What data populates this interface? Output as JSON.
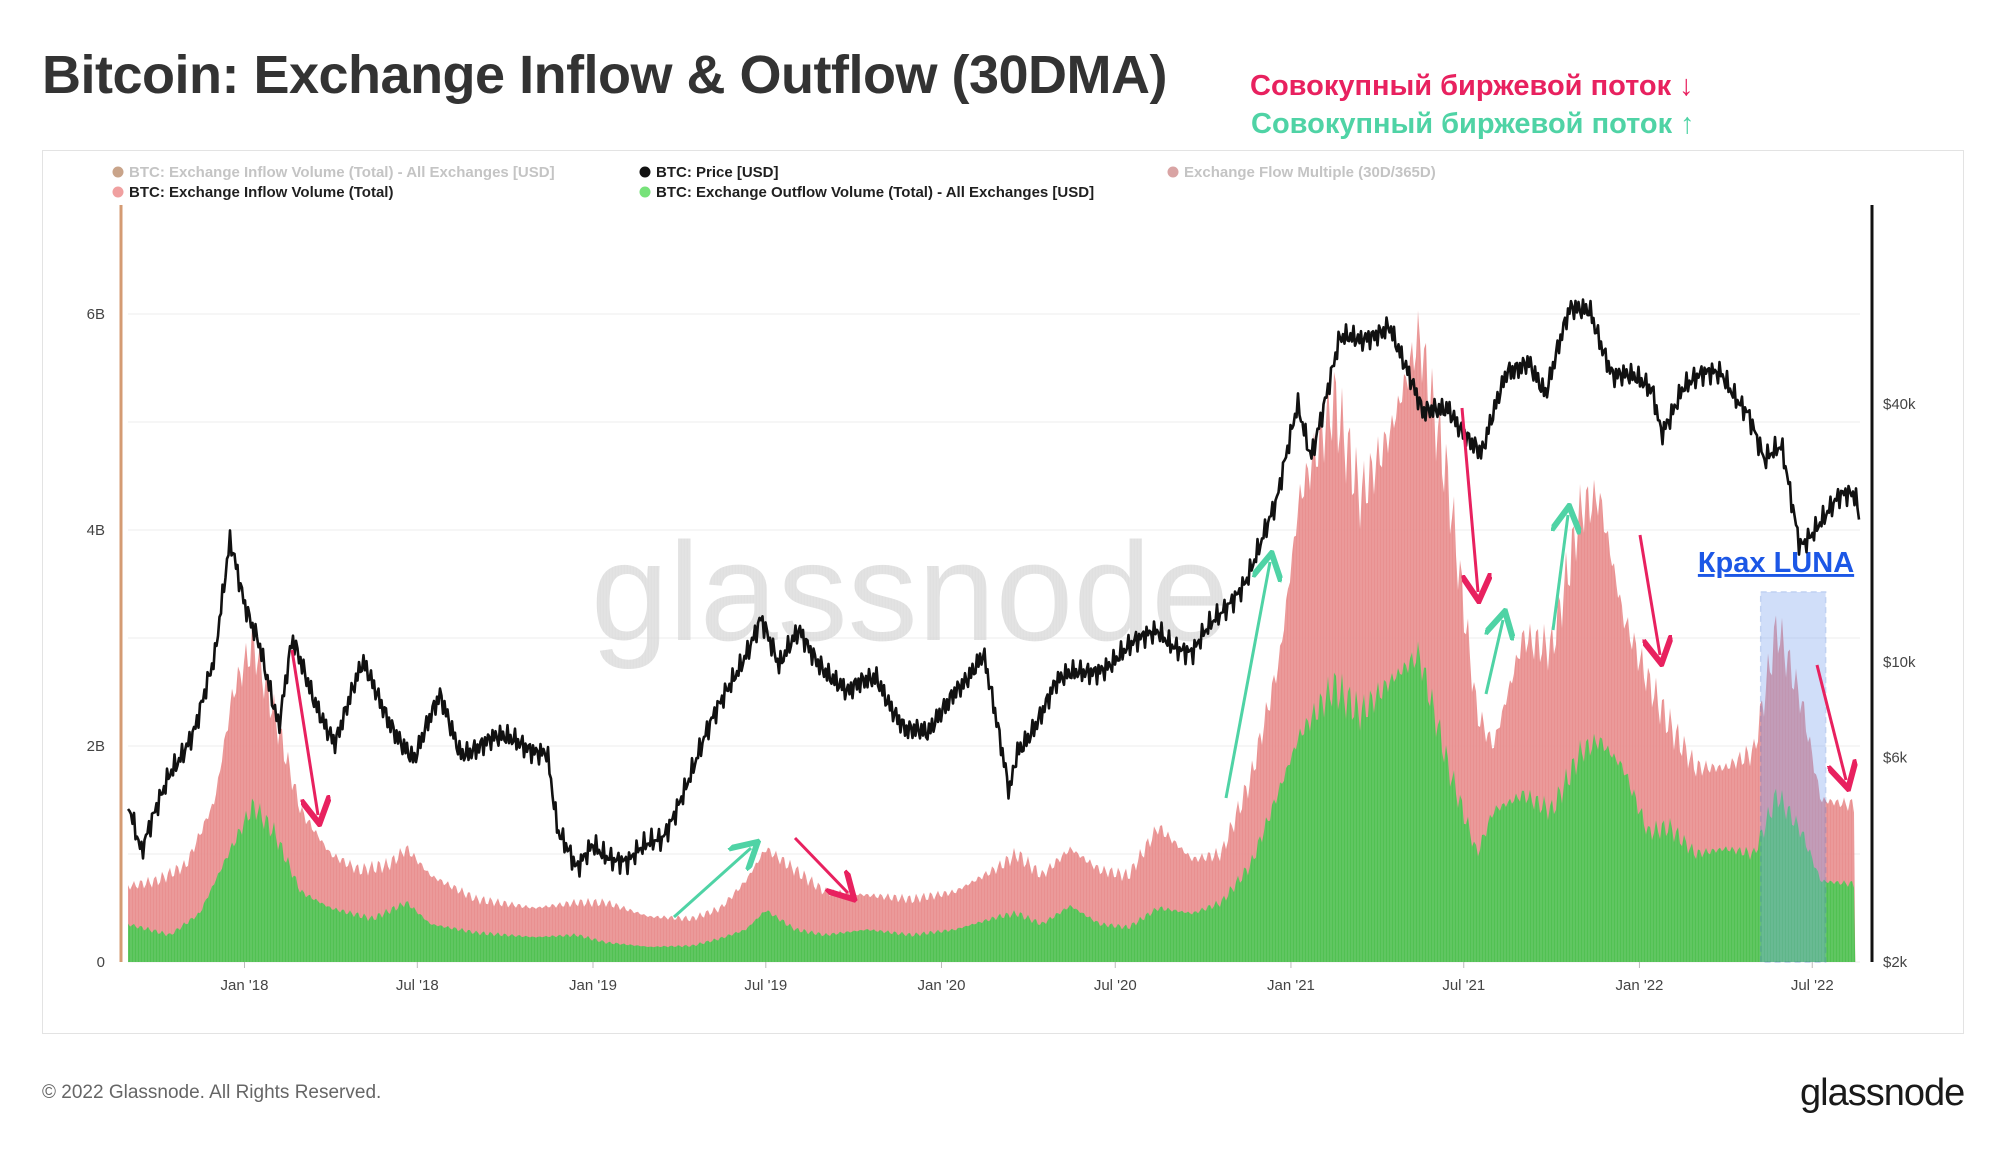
{
  "title": "Bitcoin: Exchange Inflow & Outflow (30DMA)",
  "annotations": {
    "outflow_label": "Совокупный биржевой поток ↓",
    "inflow_label": "Совокупный биржевой поток ↑",
    "luna_label": "Крах LUNA"
  },
  "footer": "© 2022 Glassnode. All Rights Reserved.",
  "brand": "glassnode",
  "watermark": "glassnode",
  "colors": {
    "inflow": "#e88a8a",
    "outflow": "#49c44f",
    "price": "#111111",
    "down_arrow": "#e8215f",
    "up_arrow": "#4fd3a5",
    "luna_box": "#7aa3f0",
    "luna_text": "#1c57e6",
    "left_axis": "#d49b73",
    "right_axis": "#111111"
  },
  "legend": [
    {
      "label": "BTC: Exchange Inflow Volume (Total) - All Exchanges [USD]",
      "color": "#c9a48a",
      "muted": true
    },
    {
      "label": "BTC: Price [USD]",
      "color": "#111111",
      "muted": false
    },
    {
      "label": "Exchange Flow Multiple (30D/365D)",
      "color": "#d9a4a4",
      "muted": true
    },
    {
      "label": "BTC: Exchange Inflow Volume (Total)",
      "color": "#f0a0a0",
      "muted": false
    },
    {
      "label": "BTC: Exchange Outflow Volume (Total) - All Exchanges [USD]",
      "color": "#77e27a",
      "muted": false
    }
  ],
  "chart_data": {
    "type": "area",
    "x_ticks": [
      "Jan '18",
      "Jul '18",
      "Jan '19",
      "Jul '19",
      "Jan '20",
      "Jul '20",
      "Jan '21",
      "Jul '21",
      "Jan '22",
      "Jul '22"
    ],
    "y_left_ticks": [
      "0",
      "2B",
      "4B",
      "6B"
    ],
    "y_left_range": [
      0,
      7000000000
    ],
    "y_right_ticks": [
      "$2k",
      "$6k",
      "$10k",
      "$40k"
    ],
    "y_right_scale": "log",
    "y_right_range": [
      2000,
      100000
    ],
    "grid": true,
    "legend_position": "top-left",
    "series": [
      {
        "name": "BTC: Exchange Inflow Volume (Total)",
        "unit": "USD",
        "points": [
          [
            "2017-09-01",
            0.7
          ],
          [
            "2017-10-01",
            0.75
          ],
          [
            "2017-11-01",
            0.9
          ],
          [
            "2017-12-01",
            1.5
          ],
          [
            "2017-12-20",
            2.5
          ],
          [
            "2018-01-10",
            2.95
          ],
          [
            "2018-02-01",
            2.3
          ],
          [
            "2018-03-01",
            1.4
          ],
          [
            "2018-04-01",
            1.0
          ],
          [
            "2018-05-01",
            0.85
          ],
          [
            "2018-06-01",
            0.9
          ],
          [
            "2018-06-20",
            1.05
          ],
          [
            "2018-07-15",
            0.8
          ],
          [
            "2018-09-01",
            0.58
          ],
          [
            "2018-11-01",
            0.5
          ],
          [
            "2018-12-15",
            0.55
          ],
          [
            "2019-01-15",
            0.55
          ],
          [
            "2019-03-01",
            0.42
          ],
          [
            "2019-04-15",
            0.4
          ],
          [
            "2019-05-15",
            0.5
          ],
          [
            "2019-06-10",
            0.75
          ],
          [
            "2019-07-01",
            1.05
          ],
          [
            "2019-08-01",
            0.85
          ],
          [
            "2019-09-01",
            0.65
          ],
          [
            "2019-10-15",
            0.62
          ],
          [
            "2019-12-01",
            0.58
          ],
          [
            "2020-01-15",
            0.65
          ],
          [
            "2020-03-01",
            0.88
          ],
          [
            "2020-03-20",
            1.0
          ],
          [
            "2020-04-15",
            0.8
          ],
          [
            "2020-05-15",
            1.05
          ],
          [
            "2020-06-15",
            0.85
          ],
          [
            "2020-07-15",
            0.8
          ],
          [
            "2020-08-15",
            1.25
          ],
          [
            "2020-09-20",
            0.95
          ],
          [
            "2020-10-20",
            1.0
          ],
          [
            "2020-11-20",
            1.7
          ],
          [
            "2020-12-20",
            2.8
          ],
          [
            "2021-01-10",
            4.3
          ],
          [
            "2021-02-15",
            5.2
          ],
          [
            "2021-03-15",
            4.3
          ],
          [
            "2021-04-15",
            4.9
          ],
          [
            "2021-05-15",
            5.8
          ],
          [
            "2021-06-15",
            4.4
          ],
          [
            "2021-07-15",
            2.3
          ],
          [
            "2021-08-01",
            2.0
          ],
          [
            "2021-09-01",
            3.0
          ],
          [
            "2021-10-01",
            2.9
          ],
          [
            "2021-11-01",
            4.2
          ],
          [
            "2021-11-20",
            4.3
          ],
          [
            "2021-12-15",
            3.2
          ],
          [
            "2022-01-10",
            2.6
          ],
          [
            "2022-02-01",
            2.2
          ],
          [
            "2022-03-01",
            1.8
          ],
          [
            "2022-04-01",
            1.8
          ],
          [
            "2022-05-01",
            1.95
          ],
          [
            "2022-05-25",
            3.1
          ],
          [
            "2022-06-20",
            2.4
          ],
          [
            "2022-07-10",
            1.5
          ],
          [
            "2022-08-15",
            1.45
          ]
        ]
      },
      {
        "name": "BTC: Exchange Outflow Volume (Total) - All Exchanges [USD]",
        "unit": "USD",
        "points": [
          [
            "2017-09-01",
            0.35
          ],
          [
            "2017-10-15",
            0.25
          ],
          [
            "2017-11-15",
            0.45
          ],
          [
            "2017-12-15",
            1.0
          ],
          [
            "2018-01-10",
            1.45
          ],
          [
            "2018-02-01",
            1.2
          ],
          [
            "2018-03-01",
            0.65
          ],
          [
            "2018-04-01",
            0.5
          ],
          [
            "2018-05-15",
            0.4
          ],
          [
            "2018-06-20",
            0.55
          ],
          [
            "2018-07-15",
            0.35
          ],
          [
            "2018-09-01",
            0.27
          ],
          [
            "2018-11-01",
            0.23
          ],
          [
            "2018-12-15",
            0.25
          ],
          [
            "2019-01-15",
            0.18
          ],
          [
            "2019-03-01",
            0.14
          ],
          [
            "2019-04-15",
            0.15
          ],
          [
            "2019-05-15",
            0.22
          ],
          [
            "2019-06-10",
            0.3
          ],
          [
            "2019-07-01",
            0.48
          ],
          [
            "2019-08-01",
            0.3
          ],
          [
            "2019-09-01",
            0.25
          ],
          [
            "2019-10-15",
            0.3
          ],
          [
            "2019-12-01",
            0.25
          ],
          [
            "2020-01-15",
            0.3
          ],
          [
            "2020-03-01",
            0.42
          ],
          [
            "2020-03-20",
            0.45
          ],
          [
            "2020-04-15",
            0.35
          ],
          [
            "2020-05-15",
            0.52
          ],
          [
            "2020-06-15",
            0.35
          ],
          [
            "2020-07-15",
            0.32
          ],
          [
            "2020-08-15",
            0.5
          ],
          [
            "2020-09-20",
            0.45
          ],
          [
            "2020-10-20",
            0.55
          ],
          [
            "2020-11-20",
            0.9
          ],
          [
            "2020-12-20",
            1.6
          ],
          [
            "2021-01-10",
            2.1
          ],
          [
            "2021-02-15",
            2.55
          ],
          [
            "2021-03-15",
            2.3
          ],
          [
            "2021-04-15",
            2.6
          ],
          [
            "2021-05-15",
            2.85
          ],
          [
            "2021-06-15",
            1.8
          ],
          [
            "2021-07-15",
            1.0
          ],
          [
            "2021-08-01",
            1.4
          ],
          [
            "2021-09-01",
            1.55
          ],
          [
            "2021-10-01",
            1.4
          ],
          [
            "2021-11-01",
            1.95
          ],
          [
            "2021-11-20",
            2.05
          ],
          [
            "2021-12-15",
            1.8
          ],
          [
            "2022-01-10",
            1.2
          ],
          [
            "2022-02-01",
            1.25
          ],
          [
            "2022-03-01",
            1.0
          ],
          [
            "2022-04-01",
            1.05
          ],
          [
            "2022-05-01",
            1.0
          ],
          [
            "2022-05-25",
            1.55
          ],
          [
            "2022-06-20",
            1.2
          ],
          [
            "2022-07-10",
            0.75
          ],
          [
            "2022-08-15",
            0.72
          ]
        ]
      },
      {
        "name": "BTC: Price [USD]",
        "unit": "USD",
        "points": [
          [
            "2017-09-01",
            4700
          ],
          [
            "2017-09-15",
            3500
          ],
          [
            "2017-10-15",
            5600
          ],
          [
            "2017-11-10",
            7100
          ],
          [
            "2017-12-01",
            10000
          ],
          [
            "2017-12-17",
            19000
          ],
          [
            "2018-01-01",
            14000
          ],
          [
            "2018-01-16",
            11500
          ],
          [
            "2018-02-06",
            6900
          ],
          [
            "2018-02-20",
            11000
          ],
          [
            "2018-03-15",
            8300
          ],
          [
            "2018-04-06",
            6600
          ],
          [
            "2018-05-05",
            9700
          ],
          [
            "2018-06-01",
            7500
          ],
          [
            "2018-06-28",
            5900
          ],
          [
            "2018-07-25",
            8200
          ],
          [
            "2018-08-15",
            6300
          ],
          [
            "2018-09-15",
            6500
          ],
          [
            "2018-10-15",
            6500
          ],
          [
            "2018-11-14",
            6300
          ],
          [
            "2018-11-25",
            4000
          ],
          [
            "2018-12-15",
            3200
          ],
          [
            "2019-01-01",
            3800
          ],
          [
            "2019-02-07",
            3400
          ],
          [
            "2019-03-15",
            3900
          ],
          [
            "2019-04-02",
            4900
          ],
          [
            "2019-05-15",
            7900
          ],
          [
            "2019-06-26",
            12900
          ],
          [
            "2019-07-15",
            9500
          ],
          [
            "2019-08-05",
            11800
          ],
          [
            "2019-09-25",
            8300
          ],
          [
            "2019-10-25",
            9300
          ],
          [
            "2019-11-25",
            7000
          ],
          [
            "2019-12-18",
            6600
          ],
          [
            "2020-01-15",
            8800
          ],
          [
            "2020-02-14",
            10300
          ],
          [
            "2020-03-12",
            4900
          ],
          [
            "2020-03-20",
            6200
          ],
          [
            "2020-04-29",
            8800
          ],
          [
            "2020-06-01",
            9500
          ],
          [
            "2020-07-27",
            11000
          ],
          [
            "2020-08-15",
            11900
          ],
          [
            "2020-09-20",
            10500
          ],
          [
            "2020-10-21",
            12900
          ],
          [
            "2020-11-15",
            16000
          ],
          [
            "2020-12-17",
            23000
          ],
          [
            "2021-01-08",
            40000
          ],
          [
            "2021-01-22",
            31000
          ],
          [
            "2021-02-21",
            56000
          ],
          [
            "2021-03-15",
            55000
          ],
          [
            "2021-04-14",
            63000
          ],
          [
            "2021-05-19",
            37000
          ],
          [
            "2021-06-15",
            40000
          ],
          [
            "2021-07-20",
            30000
          ],
          [
            "2021-08-15",
            47000
          ],
          [
            "2021-09-07",
            52000
          ],
          [
            "2021-09-25",
            42000
          ],
          [
            "2021-10-20",
            65000
          ],
          [
            "2021-11-10",
            68000
          ],
          [
            "2021-12-04",
            47000
          ],
          [
            "2022-01-15",
            43000
          ],
          [
            "2022-01-24",
            35000
          ],
          [
            "2022-02-15",
            44000
          ],
          [
            "2022-03-28",
            47000
          ],
          [
            "2022-04-25",
            39000
          ],
          [
            "2022-05-12",
            29000
          ],
          [
            "2022-05-30",
            31000
          ],
          [
            "2022-06-18",
            19000
          ],
          [
            "2022-07-08",
            21500
          ],
          [
            "2022-07-30",
            23800
          ],
          [
            "2022-08-15",
            24000
          ],
          [
            "2022-08-20",
            21000
          ]
        ]
      }
    ],
    "events": [
      {
        "label": "Крах LUNA",
        "start": "2022-05-08",
        "end": "2022-07-15"
      }
    ]
  }
}
